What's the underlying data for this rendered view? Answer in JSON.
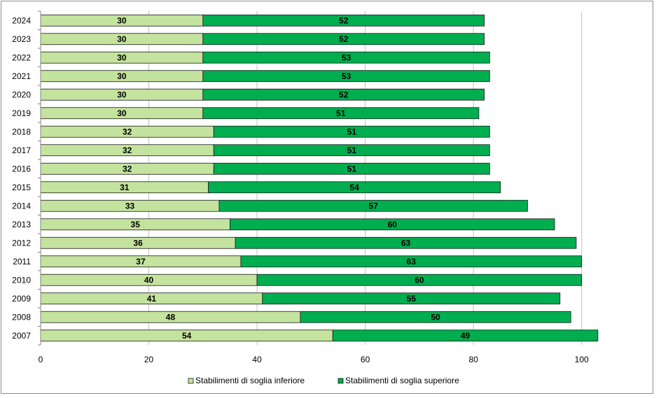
{
  "chart_data": {
    "type": "bar",
    "orientation": "horizontal",
    "stacked": true,
    "categories": [
      "2024",
      "2023",
      "2022",
      "2021",
      "2020",
      "2019",
      "2018",
      "2017",
      "2016",
      "2015",
      "2014",
      "2013",
      "2012",
      "2011",
      "2010",
      "2009",
      "2008",
      "2007"
    ],
    "series": [
      {
        "name": "Stabilimenti di soglia inferiore",
        "color": "#c3e39e",
        "values": [
          30,
          30,
          30,
          30,
          30,
          30,
          32,
          32,
          32,
          31,
          33,
          35,
          36,
          37,
          40,
          41,
          48,
          54
        ]
      },
      {
        "name": "Stabilimenti di soglia superiore",
        "color": "#00ad4f",
        "values": [
          52,
          52,
          53,
          53,
          52,
          51,
          51,
          51,
          51,
          54,
          57,
          60,
          63,
          63,
          60,
          55,
          50,
          49
        ]
      }
    ],
    "xlim": [
      0,
      100
    ],
    "xticks": [
      0,
      20,
      40,
      60,
      80,
      100
    ],
    "grid": true,
    "legend_position": "bottom",
    "title": "",
    "xlabel": "",
    "ylabel": ""
  }
}
